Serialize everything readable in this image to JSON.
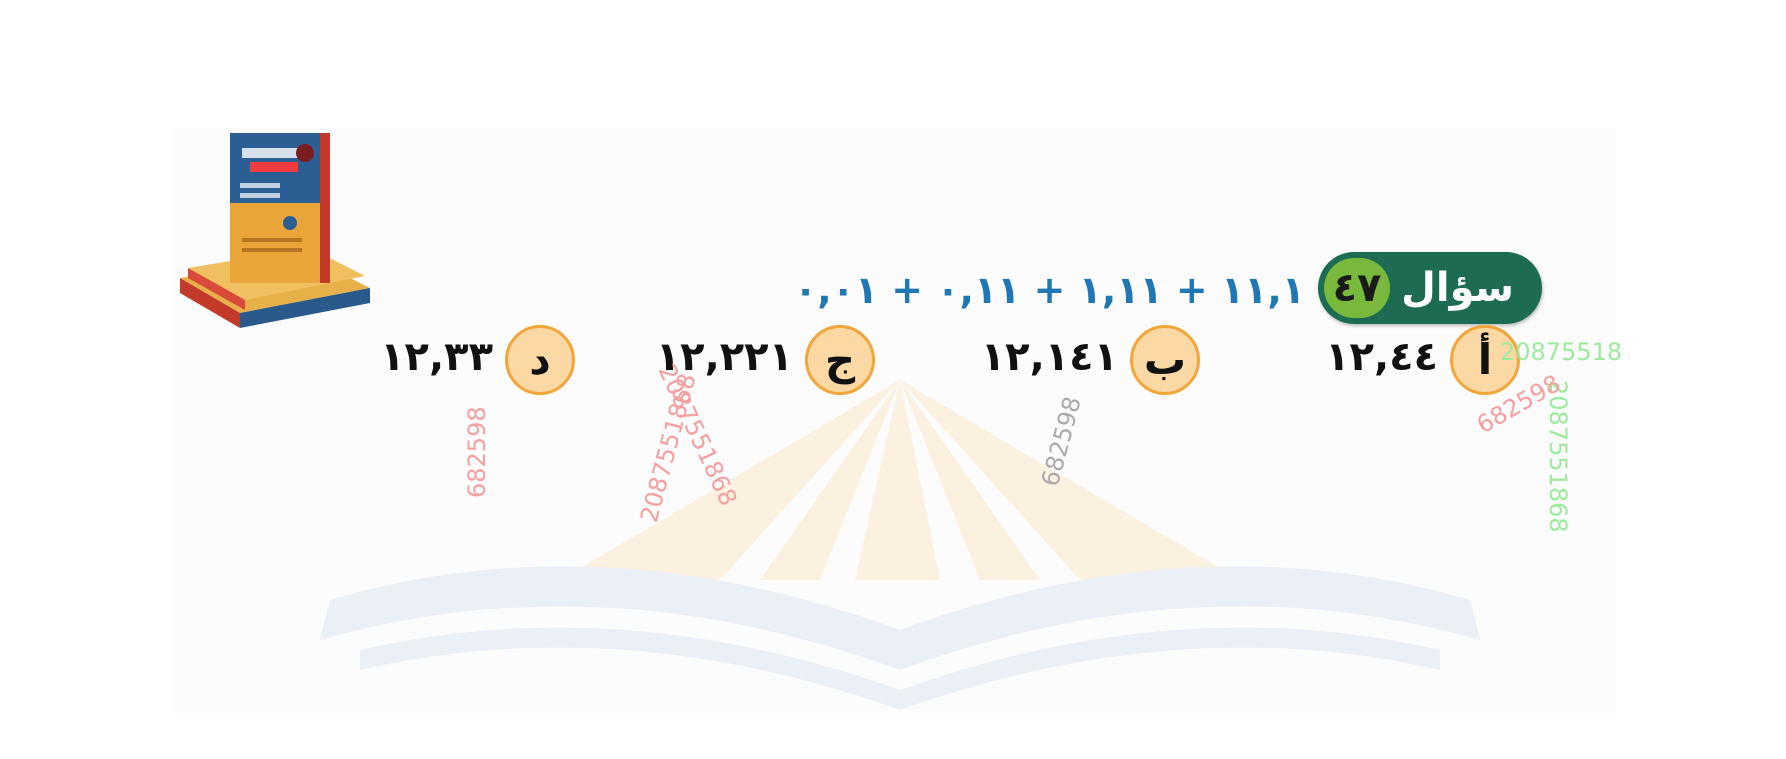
{
  "question": {
    "label": "سؤال",
    "number": "٤٧",
    "text": "١١,١ + ١,١١ + ٠,١١ + ٠,٠١"
  },
  "choices": [
    {
      "letter": "أ",
      "value": "١٢,٤٤"
    },
    {
      "letter": "ب",
      "value": "١٢,١٤١"
    },
    {
      "letter": "ج",
      "value": "١٢,٢٢١"
    },
    {
      "letter": "د",
      "value": "١٢,٣٣"
    }
  ],
  "stamps": [
    {
      "text": "20875518",
      "color": "#9cea9c"
    },
    {
      "text": "2087551868",
      "color": "#9cea9c"
    },
    {
      "text": "682598",
      "color": "#f5a0a0"
    },
    {
      "text": "682598",
      "color": "#aaaaaa"
    },
    {
      "text": "2087551868",
      "color": "#f5a0a0"
    },
    {
      "text": "2087551868",
      "color": "#f5a0a0"
    },
    {
      "text": "682598",
      "color": "#f5a0a0"
    }
  ],
  "colors": {
    "badge": "#1c6b52",
    "badge_number": "#78b83a",
    "question_text": "#1f77b4",
    "choice_circle": "#fcd8a4",
    "choice_border": "#f2a63a"
  }
}
